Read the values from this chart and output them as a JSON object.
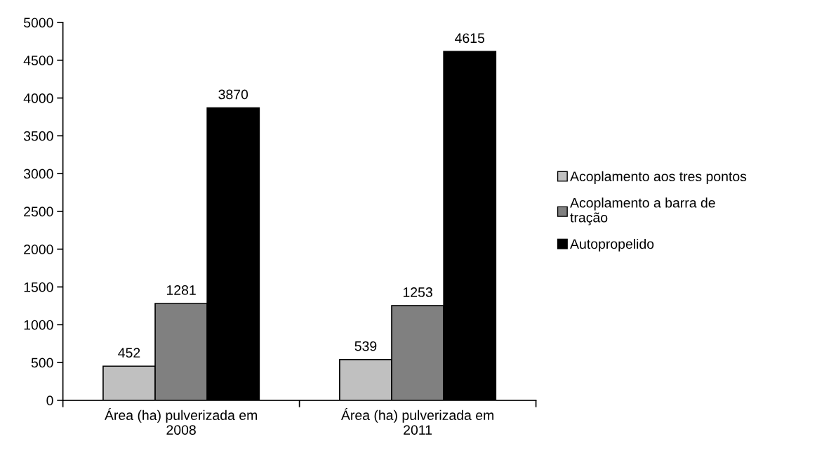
{
  "chart_data": {
    "type": "bar",
    "categories": [
      "Área (ha) pulverizada em\n2008",
      "Área (ha) pulverizada em\n2011"
    ],
    "series": [
      {
        "name": "Acoplamento aos tres pontos",
        "color": "#c0c0c0",
        "values": [
          452,
          539
        ]
      },
      {
        "name": "Acoplamento a barra de\ntração",
        "color": "#808080",
        "values": [
          1281,
          1253
        ]
      },
      {
        "name": "Autopropelido",
        "color": "#000000",
        "values": [
          3870,
          4615
        ]
      }
    ],
    "ylim": [
      0,
      5000
    ],
    "yticks": [
      0,
      500,
      1000,
      1500,
      2000,
      2500,
      3000,
      3500,
      4000,
      4500,
      5000
    ],
    "data_labels": true,
    "legend": "right",
    "grid": false
  }
}
